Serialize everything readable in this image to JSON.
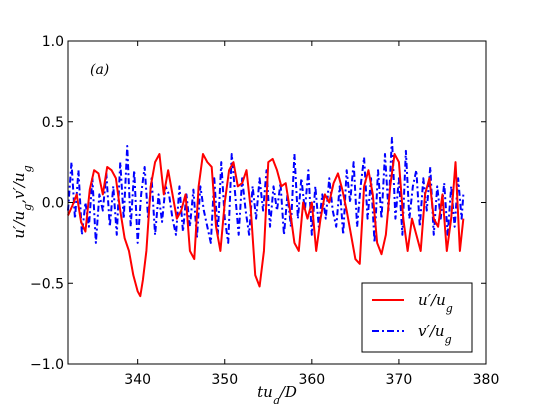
{
  "chart_data": {
    "type": "line",
    "panel_label": "(a)",
    "xlabel": "tu_g/D",
    "ylabel": "u'/u_g, v'/u_g",
    "xlim": [
      332,
      380
    ],
    "ylim": [
      -1.0,
      1.0
    ],
    "xticks": [
      {
        "value": 340,
        "label": "340"
      },
      {
        "value": 350,
        "label": "350"
      },
      {
        "value": 360,
        "label": "360"
      },
      {
        "value": 370,
        "label": "370"
      },
      {
        "value": 380,
        "label": "380"
      }
    ],
    "yticks": [
      {
        "value": -1.0,
        "label": "−1.0"
      },
      {
        "value": -0.5,
        "label": "−0.5"
      },
      {
        "value": 0.0,
        "label": "0.0"
      },
      {
        "value": 0.5,
        "label": "0.5"
      },
      {
        "value": 1.0,
        "label": "1.0"
      }
    ],
    "grid": false,
    "legend_position": "bottom-right",
    "series": [
      {
        "name": "u'/u_g",
        "color": "#ff0000",
        "style": "solid",
        "x": [
          332.0,
          332.5,
          333.0,
          333.5,
          334.0,
          334.5,
          335.0,
          335.5,
          336.0,
          336.5,
          337.0,
          337.5,
          338.0,
          338.5,
          339.0,
          339.5,
          340.0,
          340.3,
          340.6,
          341.0,
          341.5,
          342.0,
          342.5,
          343.0,
          343.5,
          344.0,
          344.5,
          345.0,
          345.5,
          346.0,
          346.5,
          347.0,
          347.5,
          348.0,
          348.5,
          349.0,
          349.5,
          350.0,
          350.5,
          351.0,
          351.5,
          352.0,
          352.5,
          353.0,
          353.5,
          354.0,
          354.5,
          355.0,
          355.5,
          356.0,
          356.5,
          357.0,
          357.5,
          358.0,
          358.5,
          359.0,
          359.5,
          360.0,
          360.5,
          361.0,
          361.5,
          362.0,
          362.5,
          363.0,
          363.5,
          364.0,
          364.5,
          365.0,
          365.5,
          366.0,
          366.5,
          367.0,
          367.5,
          368.0,
          368.5,
          369.0,
          369.5,
          370.0,
          370.5,
          371.0,
          371.5,
          372.0,
          372.5,
          373.0,
          373.5,
          374.0,
          374.5,
          375.0,
          375.5,
          376.0,
          376.5,
          377.0,
          377.4
        ],
        "values": [
          -0.08,
          -0.02,
          0.05,
          -0.12,
          -0.18,
          0.08,
          0.2,
          0.18,
          0.05,
          0.22,
          0.2,
          0.15,
          -0.05,
          -0.22,
          -0.3,
          -0.45,
          -0.55,
          -0.58,
          -0.48,
          -0.3,
          0.1,
          0.25,
          0.3,
          0.05,
          0.2,
          0.05,
          -0.1,
          -0.05,
          0.05,
          -0.3,
          -0.35,
          0.1,
          0.3,
          0.25,
          0.22,
          -0.15,
          -0.3,
          0.0,
          0.2,
          0.25,
          0.1,
          0.12,
          0.2,
          -0.05,
          -0.45,
          -0.52,
          -0.3,
          0.25,
          0.27,
          0.2,
          0.1,
          0.12,
          -0.05,
          -0.25,
          -0.3,
          0.0,
          -0.1,
          0.0,
          -0.3,
          -0.1,
          0.05,
          0.0,
          0.12,
          0.18,
          0.08,
          -0.05,
          -0.2,
          -0.35,
          -0.38,
          0.1,
          0.2,
          0.05,
          -0.25,
          -0.32,
          -0.2,
          0.1,
          0.3,
          0.25,
          -0.1,
          -0.3,
          -0.1,
          -0.2,
          -0.3,
          0.05,
          0.15,
          -0.1,
          -0.15,
          0.05,
          -0.3,
          -0.1,
          0.25,
          -0.3,
          -0.1
        ]
      },
      {
        "name": "v'/u_g",
        "color": "#0000ff",
        "style": "dashdot",
        "x": [
          332.0,
          332.4,
          332.8,
          333.2,
          333.6,
          334.0,
          334.4,
          334.8,
          335.2,
          335.6,
          336.0,
          336.4,
          336.8,
          337.2,
          337.6,
          338.0,
          338.4,
          338.8,
          339.2,
          339.6,
          340.0,
          340.4,
          340.8,
          341.2,
          341.6,
          342.0,
          342.4,
          342.8,
          343.2,
          343.6,
          344.0,
          344.4,
          344.8,
          345.2,
          345.6,
          346.0,
          346.4,
          346.8,
          347.2,
          347.6,
          348.0,
          348.4,
          348.8,
          349.2,
          349.6,
          350.0,
          350.4,
          350.8,
          351.2,
          351.6,
          352.0,
          352.4,
          352.8,
          353.2,
          353.6,
          354.0,
          354.4,
          354.8,
          355.2,
          355.6,
          356.0,
          356.4,
          356.8,
          357.2,
          357.6,
          358.0,
          358.4,
          358.8,
          359.2,
          359.6,
          360.0,
          360.4,
          360.8,
          361.2,
          361.6,
          362.0,
          362.4,
          362.8,
          363.2,
          363.6,
          364.0,
          364.4,
          364.8,
          365.2,
          365.6,
          366.0,
          366.4,
          366.8,
          367.2,
          367.6,
          368.0,
          368.4,
          368.8,
          369.2,
          369.6,
          370.0,
          370.4,
          370.8,
          371.2,
          371.6,
          372.0,
          372.4,
          372.8,
          373.2,
          373.6,
          374.0,
          374.4,
          374.8,
          375.2,
          375.6,
          376.0,
          376.4,
          376.8,
          377.2,
          377.4
        ],
        "values": [
          -0.05,
          0.25,
          -0.1,
          0.2,
          -0.2,
          0.0,
          -0.15,
          0.15,
          -0.25,
          0.05,
          -0.05,
          0.18,
          -0.15,
          0.1,
          -0.2,
          0.25,
          -0.1,
          0.35,
          -0.15,
          0.2,
          -0.25,
          0.05,
          0.22,
          -0.1,
          0.15,
          -0.2,
          0.05,
          -0.12,
          0.1,
          0.05,
          -0.1,
          -0.2,
          0.1,
          -0.18,
          0.05,
          -0.15,
          0.08,
          -0.22,
          0.1,
          -0.05,
          -0.15,
          -0.25,
          0.15,
          -0.2,
          0.25,
          -0.1,
          -0.25,
          0.3,
          0.05,
          -0.2,
          0.15,
          -0.05,
          -0.2,
          0.1,
          -0.1,
          0.15,
          -0.05,
          0.2,
          -0.15,
          0.1,
          -0.05,
          0.12,
          -0.2,
          0.05,
          -0.15,
          0.3,
          -0.1,
          0.15,
          -0.05,
          0.2,
          -0.2,
          0.1,
          -0.15,
          0.05,
          -0.1,
          0.15,
          -0.05,
          -0.15,
          0.1,
          -0.2,
          0.2,
          0.0,
          0.25,
          -0.15,
          0.1,
          0.28,
          -0.1,
          0.15,
          -0.25,
          0.2,
          -0.1,
          0.3,
          -0.05,
          0.4,
          -0.1,
          0.15,
          -0.2,
          0.32,
          -0.1,
          0.1,
          0.2,
          -0.15,
          0.15,
          -0.05,
          0.22,
          -0.2,
          0.1,
          -0.1,
          0.12,
          -0.2,
          0.1,
          -0.15,
          0.15,
          -0.1,
          0.05
        ]
      }
    ]
  }
}
